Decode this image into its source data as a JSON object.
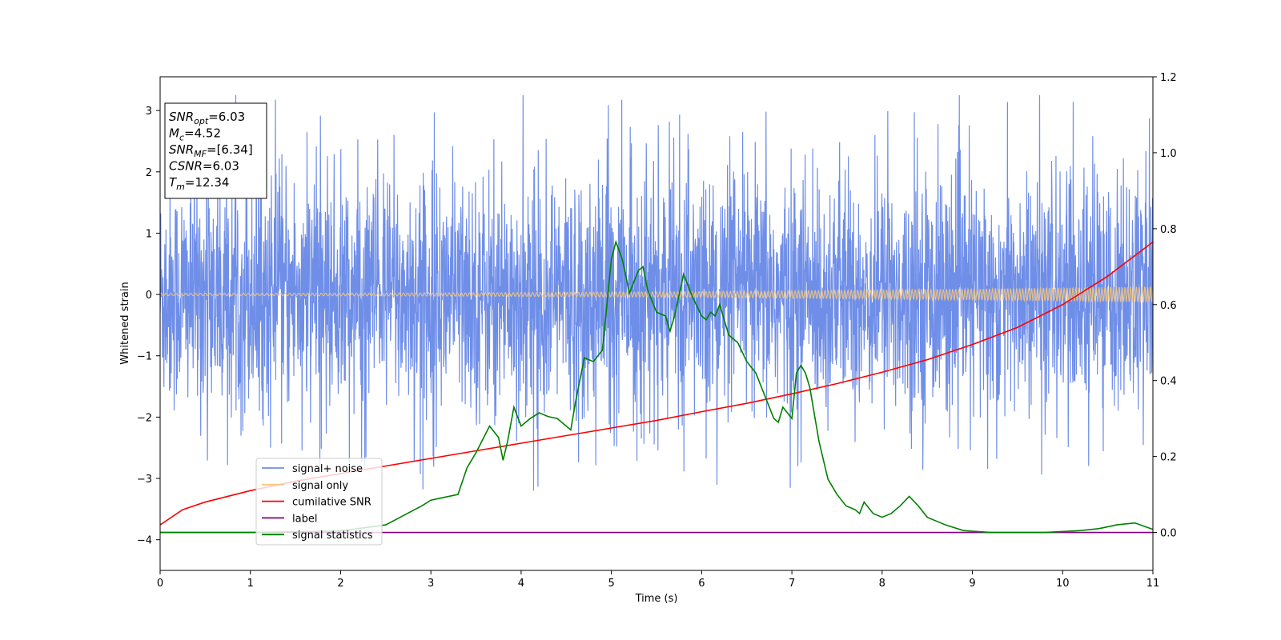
{
  "chart_data": {
    "type": "line",
    "title": "",
    "xlabel": "Time (s)",
    "ylabel": "Whitened strain",
    "xlim": [
      0,
      11
    ],
    "ylim": [
      -4.5,
      3.55
    ],
    "y2lim": [
      -0.1,
      1.2
    ],
    "x_ticks": [
      0,
      1,
      2,
      3,
      4,
      5,
      6,
      7,
      8,
      9,
      10,
      11
    ],
    "y_ticks": [
      -4,
      -3,
      -2,
      -1,
      0,
      1,
      2,
      3
    ],
    "y2_ticks": [
      0.0,
      0.2,
      0.4,
      0.6,
      0.8,
      1.0,
      1.2
    ],
    "legend_position": "lower-left",
    "annotation": {
      "lines": [
        {
          "base": "SNR",
          "sub": "opt",
          "value": "=6.03"
        },
        {
          "base": "M",
          "sub": "c",
          "value": "=4.52"
        },
        {
          "base": "SNR",
          "sub": "MF",
          "value": "=[6.34]"
        },
        {
          "base": "CSNR",
          "sub": "",
          "value": "=6.03"
        },
        {
          "base": "T",
          "sub": "m",
          "value": "=12.34"
        }
      ]
    },
    "series": [
      {
        "name": "signal+ noise",
        "color": "#6f8ee8",
        "axis": "left",
        "kind": "noise_band",
        "description_values": {
          "typical_low": -1.6,
          "typical_high": 1.8,
          "min": -4.15,
          "max": 3.25
        },
        "x": [
          0,
          11
        ]
      },
      {
        "name": "signal only",
        "color": "#f5c77e",
        "axis": "left",
        "kind": "chirp",
        "amplitude_start": 0.02,
        "amplitude_end": 0.13,
        "x": [
          0,
          11
        ]
      },
      {
        "name": "cumilative SNR",
        "color": "#ff0000",
        "axis": "right",
        "x": [
          0,
          0.25,
          0.5,
          1,
          1.5,
          2,
          2.5,
          3,
          3.5,
          4,
          4.5,
          5,
          5.5,
          6,
          6.5,
          7,
          7.5,
          8,
          8.5,
          9,
          9.5,
          10,
          10.5,
          11
        ],
        "y": [
          0.02,
          0.06,
          0.08,
          0.11,
          0.135,
          0.155,
          0.175,
          0.195,
          0.215,
          0.235,
          0.255,
          0.275,
          0.295,
          0.318,
          0.34,
          0.365,
          0.392,
          0.422,
          0.455,
          0.495,
          0.54,
          0.6,
          0.675,
          0.765
        ]
      },
      {
        "name": "label",
        "color": "#800080",
        "axis": "right",
        "x": [
          0,
          11
        ],
        "y": [
          0.0,
          0.0
        ]
      },
      {
        "name": "signal statistics",
        "color": "#008000",
        "axis": "right",
        "x": [
          0,
          1,
          2,
          2.5,
          2.7,
          2.9,
          3.0,
          3.1,
          3.2,
          3.3,
          3.4,
          3.5,
          3.65,
          3.75,
          3.8,
          3.85,
          3.92,
          4.0,
          4.1,
          4.2,
          4.3,
          4.4,
          4.5,
          4.55,
          4.6,
          4.7,
          4.8,
          4.9,
          5.0,
          5.05,
          5.12,
          5.2,
          5.3,
          5.35,
          5.4,
          5.5,
          5.6,
          5.65,
          5.7,
          5.8,
          5.9,
          6.0,
          6.05,
          6.1,
          6.15,
          6.2,
          6.3,
          6.4,
          6.5,
          6.6,
          6.7,
          6.8,
          6.85,
          6.9,
          7.0,
          7.05,
          7.1,
          7.15,
          7.2,
          7.3,
          7.4,
          7.5,
          7.6,
          7.7,
          7.75,
          7.8,
          7.9,
          8.0,
          8.1,
          8.2,
          8.3,
          8.4,
          8.5,
          8.7,
          8.9,
          9.2,
          9.5,
          9.8,
          10.2,
          10.4,
          10.6,
          10.8,
          11
        ],
        "y": [
          0.0,
          0.0,
          0.004,
          0.02,
          0.045,
          0.07,
          0.085,
          0.09,
          0.095,
          0.1,
          0.17,
          0.21,
          0.28,
          0.25,
          0.19,
          0.24,
          0.33,
          0.28,
          0.3,
          0.315,
          0.305,
          0.3,
          0.28,
          0.27,
          0.34,
          0.46,
          0.45,
          0.48,
          0.72,
          0.765,
          0.72,
          0.63,
          0.69,
          0.7,
          0.64,
          0.58,
          0.57,
          0.53,
          0.57,
          0.68,
          0.62,
          0.57,
          0.56,
          0.58,
          0.57,
          0.6,
          0.52,
          0.5,
          0.45,
          0.42,
          0.36,
          0.3,
          0.29,
          0.33,
          0.3,
          0.42,
          0.44,
          0.42,
          0.38,
          0.24,
          0.14,
          0.1,
          0.07,
          0.06,
          0.05,
          0.08,
          0.05,
          0.04,
          0.05,
          0.07,
          0.095,
          0.07,
          0.04,
          0.02,
          0.005,
          0.0,
          0.0,
          0.0,
          0.005,
          0.01,
          0.02,
          0.025,
          0.008
        ]
      }
    ]
  }
}
